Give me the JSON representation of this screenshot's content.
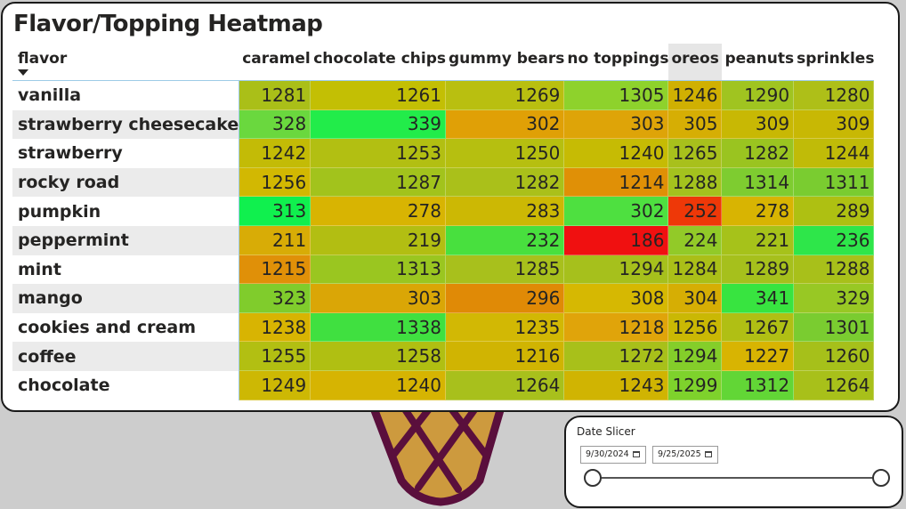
{
  "heatmap": {
    "title": "Flavor/Topping Heatmap",
    "row_header": "flavor",
    "highlighted_column": "oreos",
    "columns": [
      "caramel",
      "chocolate chips",
      "gummy bears",
      "no toppings",
      "oreos",
      "peanuts",
      "sprinkles"
    ],
    "rows": [
      {
        "flavor": "vanilla",
        "values": [
          1281,
          1261,
          1269,
          1305,
          1246,
          1290,
          1280
        ]
      },
      {
        "flavor": "strawberry cheesecake",
        "values": [
          328,
          339,
          302,
          303,
          305,
          309,
          309
        ]
      },
      {
        "flavor": "strawberry",
        "values": [
          1242,
          1253,
          1250,
          1240,
          1265,
          1282,
          1244
        ]
      },
      {
        "flavor": "rocky road",
        "values": [
          1256,
          1287,
          1282,
          1214,
          1288,
          1314,
          1311
        ]
      },
      {
        "flavor": "pumpkin",
        "values": [
          313,
          278,
          283,
          302,
          252,
          278,
          289
        ]
      },
      {
        "flavor": "peppermint",
        "values": [
          211,
          219,
          232,
          186,
          224,
          221,
          236
        ]
      },
      {
        "flavor": "mint",
        "values": [
          1215,
          1313,
          1285,
          1294,
          1284,
          1289,
          1288
        ]
      },
      {
        "flavor": "mango",
        "values": [
          323,
          303,
          296,
          308,
          304,
          341,
          329
        ]
      },
      {
        "flavor": "cookies and cream",
        "values": [
          1238,
          1338,
          1235,
          1218,
          1256,
          1267,
          1301
        ]
      },
      {
        "flavor": "coffee",
        "values": [
          1255,
          1258,
          1216,
          1272,
          1294,
          1227,
          1260
        ]
      },
      {
        "flavor": "chocolate",
        "values": [
          1249,
          1240,
          1264,
          1243,
          1299,
          1312,
          1264
        ]
      }
    ],
    "cell_colors": [
      [
        "#aabf18",
        "#c3bf04",
        "#b9bf10",
        "#8ed22c",
        "#d0b002",
        "#a0c420",
        "#aebf18"
      ],
      [
        "#6ad83e",
        "#22ec4a",
        "#e0a006",
        "#dea408",
        "#d6ae04",
        "#c8b804",
        "#c8b804"
      ],
      [
        "#c3bb06",
        "#b2bf12",
        "#b6bf10",
        "#c6bb04",
        "#a8c01c",
        "#9ac420",
        "#c0bb08"
      ],
      [
        "#d2b802",
        "#a2c31c",
        "#aac01a",
        "#e09006",
        "#a4c21e",
        "#7ecc30",
        "#7acc30"
      ],
      [
        "#10f04e",
        "#d8b402",
        "#ccb804",
        "#4ee040",
        "#ee3808",
        "#d8b402",
        "#aec012"
      ],
      [
        "#d8ac06",
        "#b2be12",
        "#48e03e",
        "#f01010",
        "#92ca28",
        "#a6c21a",
        "#2ee64a"
      ],
      [
        "#e09008",
        "#9ac620",
        "#a8c01c",
        "#a6c01c",
        "#aabf18",
        "#a6c01c",
        "#a8c01a"
      ],
      [
        "#80cc2c",
        "#daa606",
        "#e08a06",
        "#d6b802",
        "#d6ae04",
        "#38e440",
        "#98c824"
      ],
      [
        "#d8b402",
        "#40e040",
        "#d2b804",
        "#e0a40a",
        "#cab804",
        "#b0bf14",
        "#7acc30"
      ],
      [
        "#b2bf12",
        "#b0bf12",
        "#d0b402",
        "#a8c01a",
        "#84ce2a",
        "#d8b402",
        "#a6c01a"
      ],
      [
        "#cdb804",
        "#d6b402",
        "#a8c01c",
        "#d0b402",
        "#7ed22c",
        "#62d636",
        "#a8c01a"
      ]
    ]
  },
  "slicer": {
    "title": "Date Slicer",
    "start_date": "9/30/2024",
    "end_date": "9/25/2025",
    "range_position": [
      0,
      1
    ]
  },
  "decoration": {
    "cone_colors": {
      "fill": "#cd9a3e",
      "lines": "#5a0f3c"
    }
  }
}
